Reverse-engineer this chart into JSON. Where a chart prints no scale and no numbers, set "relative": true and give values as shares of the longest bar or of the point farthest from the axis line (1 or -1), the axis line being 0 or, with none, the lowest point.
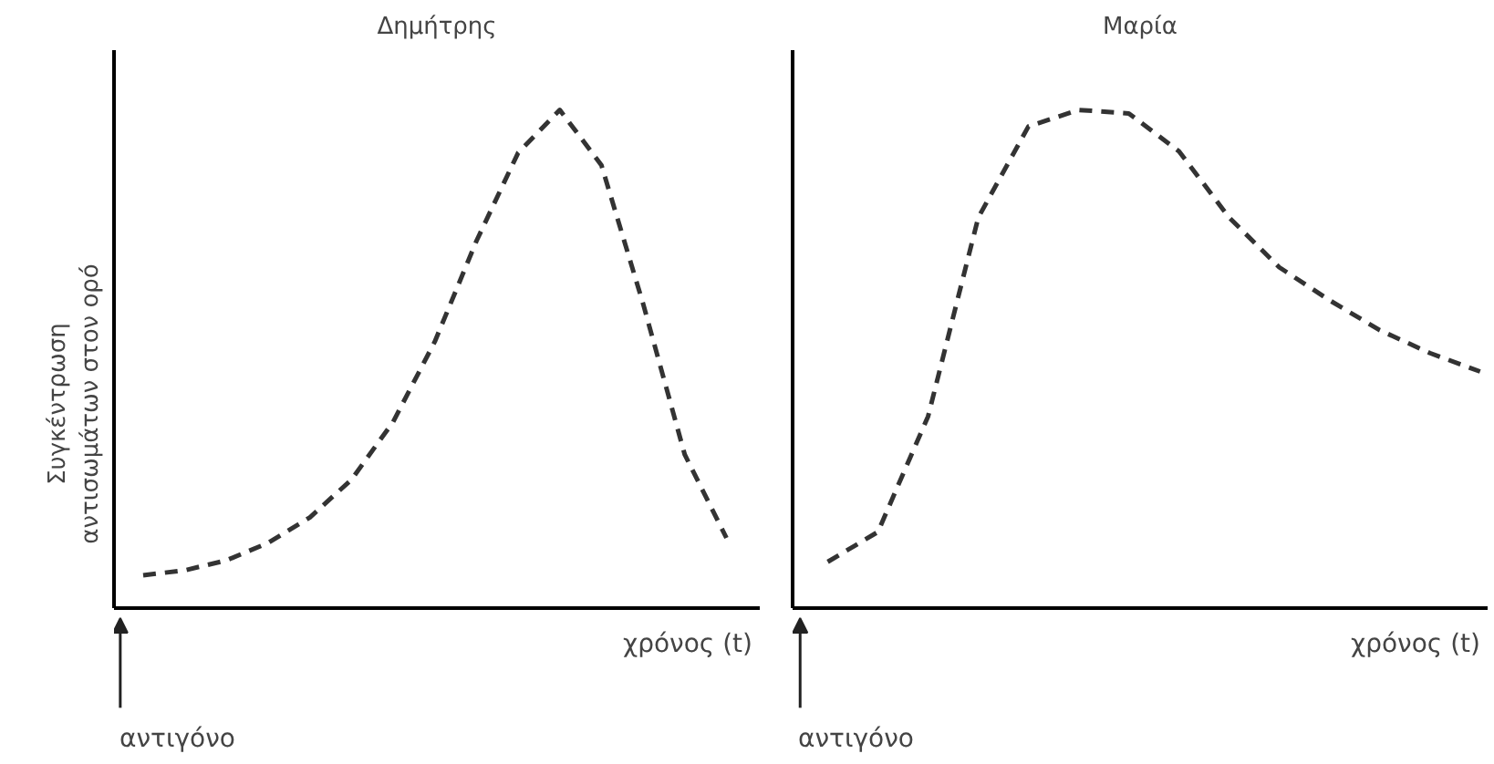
{
  "chart_data": [
    {
      "type": "line",
      "title": "Δημήτρης",
      "ylabel": "Συγκέντρωση\nαντισωμάτων στον ορό",
      "xlabel": "χρόνος (t)",
      "relative": true,
      "line_style": "dashed",
      "annotations": [
        "αντιγόνο"
      ],
      "categories": [
        null,
        null,
        null,
        null,
        null,
        null,
        null,
        null,
        null,
        null,
        null,
        null,
        null,
        null,
        null
      ],
      "series": [
        {
          "color": "#333333",
          "values": [
            0.066,
            0.076,
            0.096,
            0.131,
            0.182,
            0.258,
            0.374,
            0.535,
            0.737,
            0.914,
            1,
            0.889,
            0.611,
            0.308,
            0.141
          ]
        }
      ]
    },
    {
      "type": "line",
      "title": "Μαρία",
      "xlabel": "χρόνος (t)",
      "relative": true,
      "line_style": "dashed",
      "annotations": [
        "αντιγόνο"
      ],
      "categories": [
        null,
        null,
        null,
        null,
        null,
        null,
        null,
        null,
        null,
        null,
        null,
        null,
        null,
        null
      ],
      "series": [
        {
          "color": "#333333",
          "values": [
            0.093,
            0.153,
            0.385,
            0.784,
            0.967,
            1,
            0.993,
            0.917,
            0.784,
            0.684,
            0.618,
            0.558,
            0.512,
            0.475
          ]
        }
      ]
    }
  ]
}
